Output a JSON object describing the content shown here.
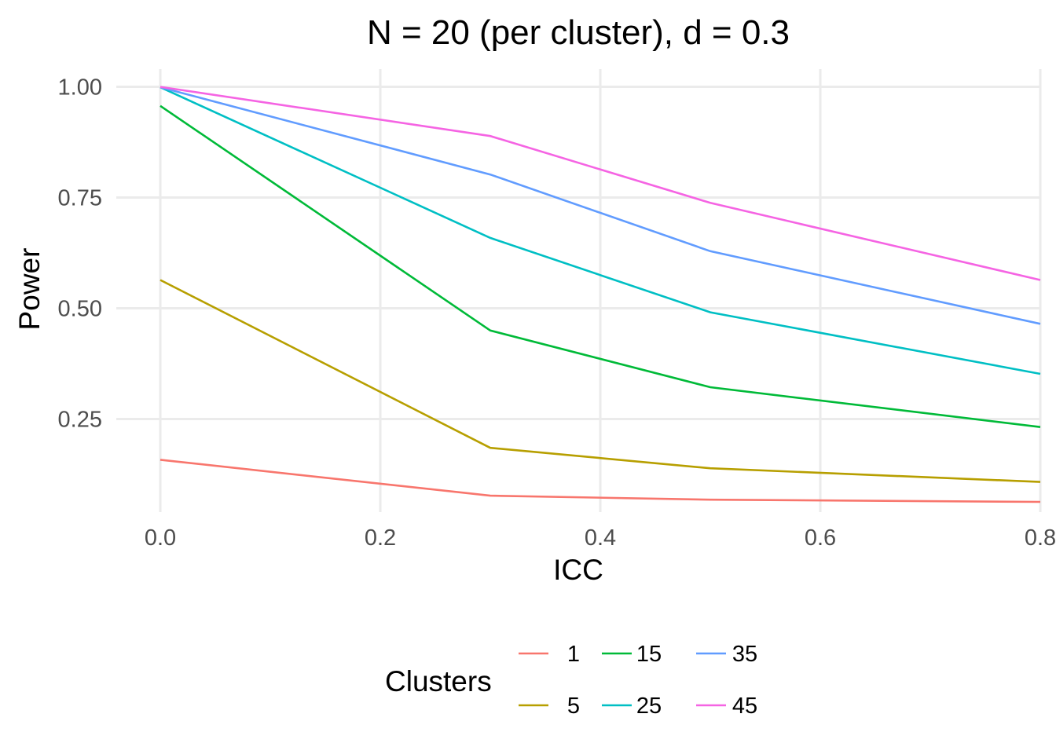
{
  "chart_data": {
    "type": "line",
    "title": "N = 20 (per cluster), d = 0.3",
    "xlabel": "ICC",
    "ylabel": "Power",
    "xlim": [
      -0.04,
      0.8
    ],
    "ylim": [
      0.04,
      1.04
    ],
    "x_ticks": [
      "0.0",
      "0.2",
      "0.4",
      "0.6",
      "0.8"
    ],
    "x_tick_values": [
      0.0,
      0.2,
      0.4,
      0.6,
      0.8
    ],
    "y_ticks": [
      "0.25",
      "0.50",
      "0.75",
      "1.00"
    ],
    "y_tick_values": [
      0.25,
      0.5,
      0.75,
      1.0
    ],
    "grid": true,
    "x": [
      0.0,
      0.3,
      0.5,
      0.8
    ],
    "legend": {
      "title": "Clusters",
      "placement": "bottom"
    },
    "series": [
      {
        "name": "1",
        "color": "#F8766D",
        "values": [
          0.158,
          0.077,
          0.068,
          0.063
        ]
      },
      {
        "name": "5",
        "color": "#B79F00",
        "values": [
          0.564,
          0.185,
          0.139,
          0.108
        ]
      },
      {
        "name": "15",
        "color": "#00BA38",
        "values": [
          0.957,
          0.45,
          0.322,
          0.232
        ]
      },
      {
        "name": "25",
        "color": "#00BFC4",
        "values": [
          0.999,
          0.659,
          0.491,
          0.352
        ]
      },
      {
        "name": "35",
        "color": "#619CFF",
        "values": [
          0.999,
          0.802,
          0.629,
          0.465
        ]
      },
      {
        "name": "45",
        "color": "#F564E3",
        "values": [
          1.0,
          0.889,
          0.738,
          0.564
        ]
      }
    ]
  }
}
